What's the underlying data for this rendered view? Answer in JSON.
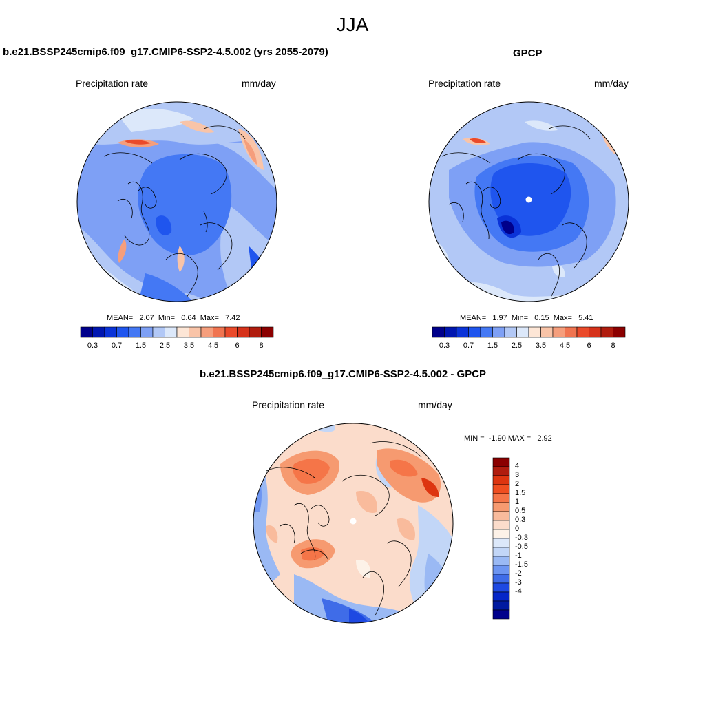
{
  "season": "JJA",
  "panels": [
    {
      "id": "model",
      "title": "b.e21.BSSP245cmip6.f09_g17.CMIP6-SSP2-4.5.002 (yrs 2055-2079)",
      "left_label": "Precipitation rate",
      "right_label": "mm/day",
      "stats": "MEAN=   2.07  Min=   0.64  Max=   7.42"
    },
    {
      "id": "gpcp",
      "title": "GPCP",
      "left_label": "Precipitation rate",
      "right_label": "mm/day",
      "stats": "MEAN=   1.97  Min=   0.15  Max=   5.41"
    },
    {
      "id": "diff",
      "title": "b.e21.BSSP245cmip6.f09_g17.CMIP6-SSP2-4.5.002 - GPCP",
      "left_label": "Precipitation rate",
      "right_label": "mm/day",
      "stats": "MIN =  -1.90 MAX =   2.92"
    }
  ],
  "colorbar_precip": {
    "colors": [
      "#00008b",
      "#0016b0",
      "#0a33d8",
      "#1f55ee",
      "#4478f4",
      "#7ea0f5",
      "#b2c8f6",
      "#dce8fa",
      "#fde6d6",
      "#f9c4a8",
      "#f59e7c",
      "#f07450",
      "#ea4a2a",
      "#d6321a",
      "#b01c0e",
      "#8b0000"
    ],
    "labels": [
      "0.3",
      "0.7",
      "1.5",
      "2.5",
      "3.5",
      "4.5",
      "6",
      "8"
    ]
  },
  "colorbar_diff": {
    "colors": [
      "#8b0000",
      "#b01c0e",
      "#dd3510",
      "#ef4e20",
      "#f57548",
      "#f69a70",
      "#f9bb9c",
      "#fbdccb",
      "#fdf2e8",
      "#dce8fa",
      "#c2d6f7",
      "#9ab9f4",
      "#6d95f1",
      "#3f6ce8",
      "#1e49e2",
      "#0526c8",
      "#001aa0",
      "#00008b"
    ],
    "labels": [
      "4",
      "3",
      "2",
      "1.5",
      "1",
      "0.5",
      "0.3",
      "0",
      "-0.3",
      "-0.5",
      "-1",
      "-1.5",
      "-2",
      "-3",
      "-4"
    ]
  }
}
